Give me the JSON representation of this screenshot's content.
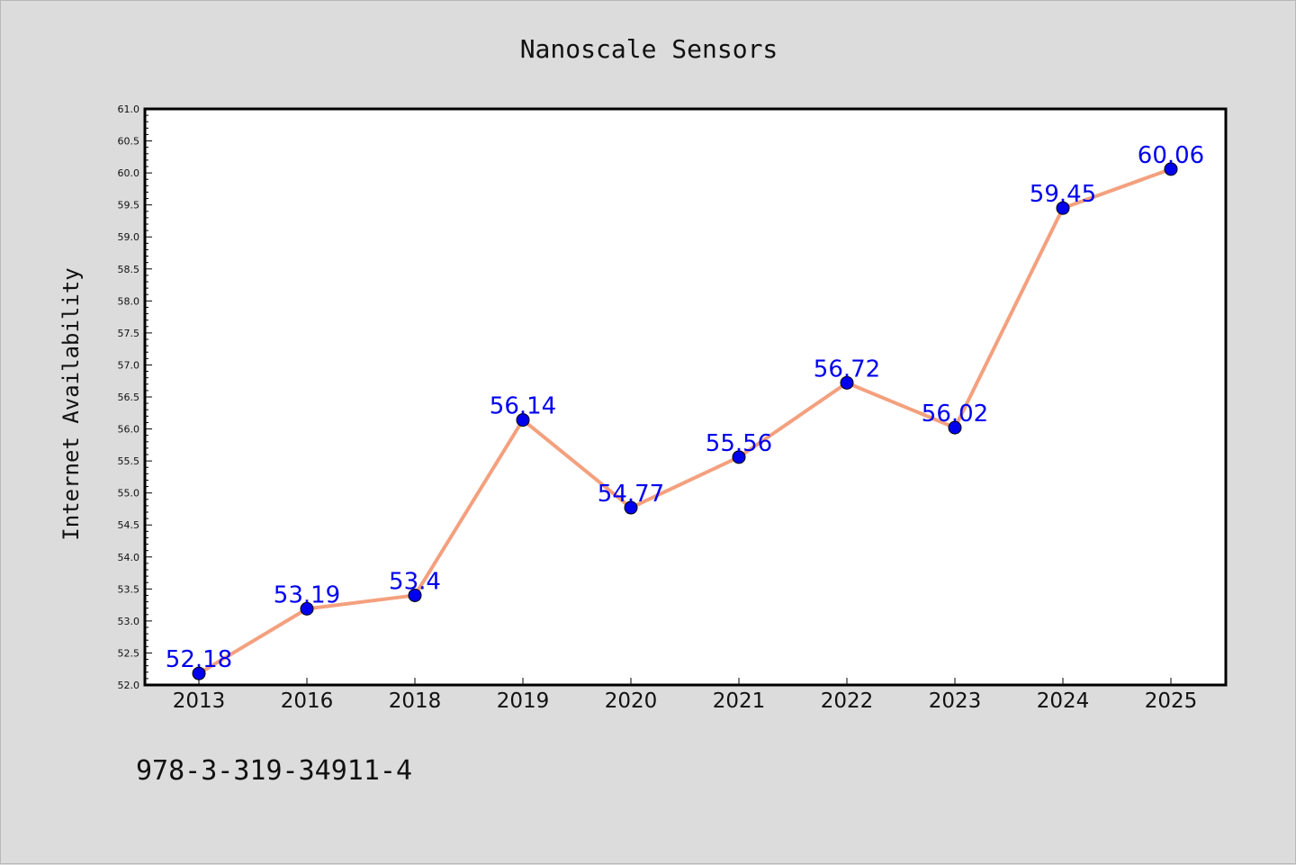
{
  "chart_data": {
    "type": "line",
    "title": "Nanoscale Sensors",
    "xlabel": "",
    "ylabel": "Internet Availability",
    "categories": [
      "2013",
      "2016",
      "2018",
      "2019",
      "2020",
      "2021",
      "2022",
      "2023",
      "2024",
      "2025"
    ],
    "series": [
      {
        "values": [
          52.18,
          53.19,
          53.4,
          56.14,
          54.77,
          55.56,
          56.72,
          56.02,
          59.45,
          60.06
        ]
      }
    ],
    "data_labels": [
      "52.18",
      "53.19",
      "53.4",
      "56.14",
      "54.77",
      "55.56",
      "56.72",
      "56.02",
      "59.45",
      "60.06"
    ],
    "ylim": [
      52.0,
      61.0
    ],
    "ytick_labels": [
      "52.0",
      "52.5",
      "53.0",
      "53.5",
      "54.0",
      "54.5",
      "55.0",
      "55.5",
      "56.0",
      "56.5",
      "57.0",
      "57.5",
      "58.0",
      "58.5",
      "59.0",
      "59.5",
      "60.0",
      "60.5",
      "61.0"
    ],
    "grid": false,
    "legend": "none",
    "colors": {
      "line": "#f4a07e",
      "marker": "#0000ee",
      "data_label": "#0000ee",
      "plot_background": "#ffffff",
      "figure_background": "#dcdcdc"
    }
  },
  "footnote": "978-3-319-34911-4"
}
